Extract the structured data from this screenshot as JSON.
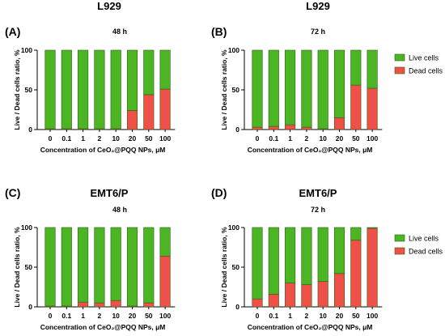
{
  "colors": {
    "live": "#4CB523",
    "dead": "#EF5148",
    "bar_outline": "#2E5E12",
    "axis": "#000000"
  },
  "chart_data": [
    {
      "type": "bar",
      "stacked": true,
      "panel_label": "(A)",
      "cell_line": "L929",
      "time": "48 h",
      "categories": [
        "0",
        "0.1",
        "1",
        "2",
        "10",
        "20",
        "50",
        "100"
      ],
      "series": [
        {
          "name": "Live cells",
          "values": [
            99,
            99,
            99,
            99,
            99,
            76,
            56,
            49
          ]
        },
        {
          "name": "Dead cells",
          "values": [
            1,
            1,
            1,
            1,
            1,
            24,
            44,
            51
          ]
        }
      ],
      "xlabel": "Concentration of CeO₂@PQQ NPs, μM",
      "ylabel": "Live / Dead cells ratio, %",
      "ylim": [
        0,
        100
      ],
      "yticks": [
        "0",
        "50",
        "100"
      ],
      "legend": "none"
    },
    {
      "type": "bar",
      "stacked": true,
      "panel_label": "(B)",
      "cell_line": "L929",
      "time": "72 h",
      "categories": [
        "0",
        "0.1",
        "1",
        "2",
        "10",
        "20",
        "50",
        "100"
      ],
      "series": [
        {
          "name": "Live cells",
          "values": [
            97,
            96,
            94,
            97,
            99,
            85,
            44,
            48
          ]
        },
        {
          "name": "Dead cells",
          "values": [
            3,
            4,
            6,
            3,
            1,
            15,
            56,
            52
          ]
        }
      ],
      "xlabel": "Concentration of CeO₂@PQQ NPs, μM",
      "ylabel": "Live / Dead cells ratio, %",
      "ylim": [
        0,
        100
      ],
      "yticks": [
        "0",
        "50",
        "100"
      ],
      "legend": "right"
    },
    {
      "type": "bar",
      "stacked": true,
      "panel_label": "(C)",
      "cell_line": "EMT6/P",
      "time": "48 h",
      "categories": [
        "0",
        "0.1",
        "1",
        "2",
        "10",
        "20",
        "50",
        "100"
      ],
      "series": [
        {
          "name": "Live cells",
          "values": [
            99,
            99,
            94,
            95,
            92,
            99,
            95,
            36
          ]
        },
        {
          "name": "Dead cells",
          "values": [
            1,
            1,
            6,
            5,
            8,
            1,
            5,
            64
          ]
        }
      ],
      "xlabel": "Concentration of CeO₂@PQQ NPs, μM",
      "ylabel": "Live / Dead cells ratio, %",
      "ylim": [
        0,
        100
      ],
      "yticks": [
        "0",
        "50",
        "100"
      ],
      "legend": "none"
    },
    {
      "type": "bar",
      "stacked": true,
      "panel_label": "(D)",
      "cell_line": "EMT6/P",
      "time": "72 h",
      "categories": [
        "0",
        "0.1",
        "1",
        "2",
        "10",
        "20",
        "50",
        "100"
      ],
      "series": [
        {
          "name": "Live cells",
          "values": [
            90,
            84,
            70,
            72,
            68,
            58,
            16,
            1
          ]
        },
        {
          "name": "Dead cells",
          "values": [
            10,
            16,
            30,
            28,
            32,
            42,
            84,
            99
          ]
        }
      ],
      "xlabel": "Concentration of CeO₂@PQQ NPs, μM",
      "ylabel": "Live / Dead cells ratio, %",
      "ylim": [
        0,
        100
      ],
      "yticks": [
        "0",
        "50",
        "100"
      ],
      "legend": "right"
    }
  ]
}
